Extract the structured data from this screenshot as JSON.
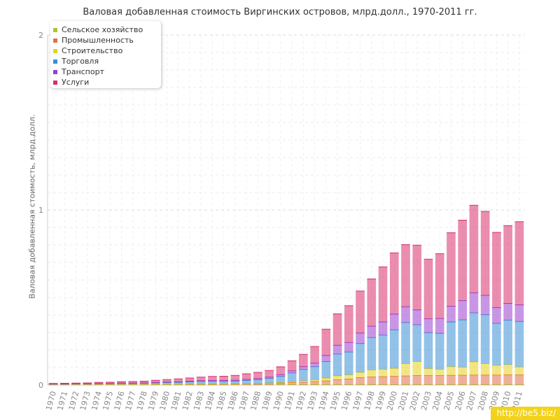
{
  "title": "Валовая добавленная стоимость Виргинских островов, млрд.долл., 1970-2011 гг.",
  "watermark": "http://be5.biz/",
  "legend_entries": [
    {
      "name": "Сельское хозяйство",
      "color": "#a8c832"
    },
    {
      "name": "Промышленность",
      "color": "#e0704a"
    },
    {
      "name": "Строительство",
      "color": "#e6d21e"
    },
    {
      "name": "Торговля",
      "color": "#3a8fd6"
    },
    {
      "name": "Транспорт",
      "color": "#9a3fcf"
    },
    {
      "name": "Услуги",
      "color": "#d8306e"
    }
  ],
  "chart_data": {
    "type": "bar",
    "stacked": true,
    "title": "Валовая добавленная стоимость Виргинских островов, млрд.долл., 1970-2011 гг.",
    "xlabel": "",
    "ylabel": "Валовая добавленная стоимость, млрд.долл.",
    "ylim": [
      0,
      2
    ],
    "yticks": [
      0,
      1,
      2
    ],
    "grid": true,
    "legend_position": "top-left",
    "categories": [
      "1970",
      "1971",
      "1972",
      "1973",
      "1974",
      "1975",
      "1976",
      "1977",
      "1978",
      "1979",
      "1980",
      "1981",
      "1982",
      "1983",
      "1984",
      "1985",
      "1986",
      "1987",
      "1988",
      "1989",
      "1990",
      "1991",
      "1992",
      "1993",
      "1994",
      "1995",
      "1996",
      "1997",
      "1998",
      "1999",
      "2000",
      "2001",
      "2002",
      "2003",
      "2004",
      "2005",
      "2006",
      "2007",
      "2008",
      "2009",
      "2010",
      "2011"
    ],
    "series": [
      {
        "name": "Сельское хозяйство",
        "color": "#a8c832",
        "values": [
          0.001,
          0.001,
          0.001,
          0.001,
          0.001,
          0.001,
          0.001,
          0.001,
          0.001,
          0.001,
          0.001,
          0.001,
          0.001,
          0.001,
          0.001,
          0.001,
          0.001,
          0.001,
          0.001,
          0.001,
          0.002,
          0.002,
          0.002,
          0.002,
          0.002,
          0.002,
          0.002,
          0.002,
          0.002,
          0.002,
          0.002,
          0.002,
          0.002,
          0.002,
          0.002,
          0.002,
          0.002,
          0.002,
          0.002,
          0.002,
          0.002,
          0.002
        ]
      },
      {
        "name": "Промышленность",
        "color": "#e0704a",
        "values": [
          0.001,
          0.001,
          0.001,
          0.001,
          0.002,
          0.002,
          0.002,
          0.002,
          0.002,
          0.003,
          0.003,
          0.003,
          0.004,
          0.004,
          0.004,
          0.004,
          0.005,
          0.006,
          0.006,
          0.008,
          0.008,
          0.012,
          0.014,
          0.018,
          0.022,
          0.028,
          0.032,
          0.04,
          0.044,
          0.046,
          0.048,
          0.05,
          0.052,
          0.052,
          0.052,
          0.053,
          0.054,
          0.055,
          0.055,
          0.055,
          0.056,
          0.056
        ]
      },
      {
        "name": "Строительство",
        "color": "#e6d21e",
        "values": [
          0.001,
          0.001,
          0.001,
          0.001,
          0.001,
          0.001,
          0.001,
          0.001,
          0.001,
          0.001,
          0.001,
          0.001,
          0.002,
          0.002,
          0.002,
          0.002,
          0.002,
          0.002,
          0.003,
          0.003,
          0.004,
          0.005,
          0.008,
          0.01,
          0.015,
          0.022,
          0.024,
          0.03,
          0.04,
          0.042,
          0.045,
          0.07,
          0.08,
          0.04,
          0.036,
          0.05,
          0.046,
          0.075,
          0.065,
          0.055,
          0.058,
          0.045
        ]
      },
      {
        "name": "Торговля",
        "color": "#3a8fd6",
        "values": [
          0.002,
          0.002,
          0.003,
          0.003,
          0.004,
          0.004,
          0.005,
          0.005,
          0.006,
          0.007,
          0.009,
          0.01,
          0.011,
          0.013,
          0.014,
          0.014,
          0.014,
          0.017,
          0.02,
          0.025,
          0.035,
          0.05,
          0.065,
          0.075,
          0.095,
          0.125,
          0.13,
          0.165,
          0.185,
          0.195,
          0.22,
          0.235,
          0.21,
          0.205,
          0.205,
          0.255,
          0.27,
          0.28,
          0.28,
          0.24,
          0.255,
          0.26
        ]
      },
      {
        "name": "Транспорт",
        "color": "#9a3fcf",
        "values": [
          0.001,
          0.001,
          0.001,
          0.001,
          0.001,
          0.001,
          0.002,
          0.002,
          0.002,
          0.003,
          0.003,
          0.004,
          0.004,
          0.005,
          0.005,
          0.005,
          0.005,
          0.006,
          0.007,
          0.008,
          0.01,
          0.012,
          0.016,
          0.02,
          0.035,
          0.05,
          0.055,
          0.06,
          0.065,
          0.075,
          0.09,
          0.09,
          0.085,
          0.08,
          0.085,
          0.09,
          0.11,
          0.115,
          0.11,
          0.09,
          0.095,
          0.095
        ]
      },
      {
        "name": "Услуги",
        "color": "#d8306e",
        "values": [
          0.003,
          0.004,
          0.004,
          0.005,
          0.006,
          0.007,
          0.008,
          0.009,
          0.01,
          0.012,
          0.014,
          0.016,
          0.018,
          0.02,
          0.023,
          0.024,
          0.028,
          0.032,
          0.035,
          0.038,
          0.045,
          0.057,
          0.07,
          0.095,
          0.15,
          0.18,
          0.21,
          0.24,
          0.27,
          0.315,
          0.35,
          0.355,
          0.37,
          0.34,
          0.37,
          0.42,
          0.46,
          0.5,
          0.48,
          0.43,
          0.445,
          0.475
        ]
      }
    ]
  }
}
